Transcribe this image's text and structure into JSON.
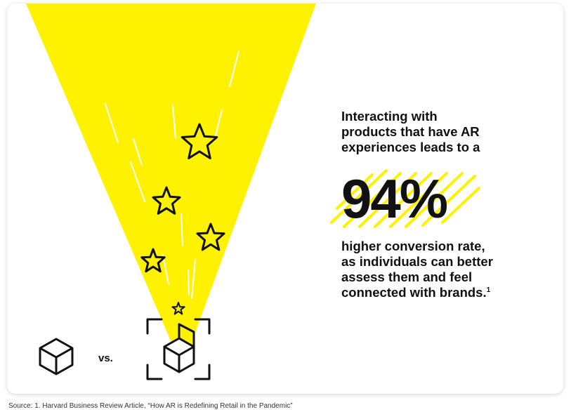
{
  "infographic": {
    "headline_lines": [
      "Interacting with",
      "products that have AR",
      "experiences leads to a"
    ],
    "stat_value": "94%",
    "body_lines": [
      "higher conversion rate,",
      "as individuals can better",
      "assess them and feel",
      "connected with brands."
    ],
    "footnote_marker": "1",
    "vs_label": "vs.",
    "source_text": "Source: 1. Harvard Business Review Article, “How AR is Redefining Retail in the Pandemic”",
    "colors": {
      "accent_yellow": "#FFF200",
      "text": "#111111",
      "background": "#FFFFFF"
    },
    "icons": [
      "cube-icon",
      "ar-cube-icon",
      "star-icon"
    ]
  }
}
